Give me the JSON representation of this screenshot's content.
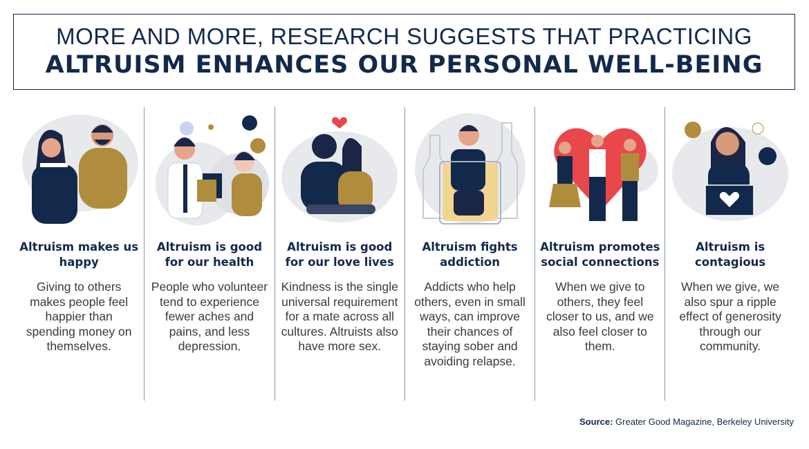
{
  "header": {
    "line1": "MORE AND MORE, RESEARCH SUGGESTS THAT PRACTICING",
    "line2": "ALTRUISM ENHANCES OUR PERSONAL WELL-BEING"
  },
  "colors": {
    "navy": "#13294b",
    "gold": "#b08d3c",
    "grey": "#e8e9ec",
    "red": "#e8474c"
  },
  "columns": [
    {
      "title": "Altruism makes us happy",
      "body": "Giving to others makes people feel happier than spending money on themselves.",
      "icon": "happy-couple-illustration"
    },
    {
      "title": "Altruism is good for our health",
      "body": "People who volunteer tend to experience fewer aches and pains, and less depression.",
      "icon": "doctor-patient-illustration"
    },
    {
      "title": "Altruism is good for our love lives",
      "body": "Kindness is the single universal requirement for a mate across all cultures. Altruists also have more sex.",
      "icon": "embracing-couple-illustration"
    },
    {
      "title": "Altruism fights addiction",
      "body": "Addicts who help others, even in small ways, can improve their chances of staying sober and avoiding relapse.",
      "icon": "man-in-bottle-illustration"
    },
    {
      "title": "Altruism promotes social connections",
      "body": "When we give to others, they feel closer to us, and we also feel closer to them.",
      "icon": "friends-heart-illustration"
    },
    {
      "title": "Altruism is contagious",
      "body": "When we give, we also spur a ripple effect of generosity through our community.",
      "icon": "donation-box-illustration"
    }
  ],
  "source": {
    "label": "Source:",
    "text": "Greater Good Magazine, Berkeley University"
  }
}
